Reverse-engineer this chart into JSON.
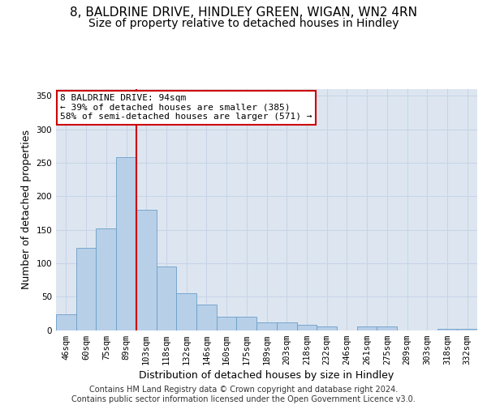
{
  "title_line1": "8, BALDRINE DRIVE, HINDLEY GREEN, WIGAN, WN2 4RN",
  "title_line2": "Size of property relative to detached houses in Hindley",
  "xlabel": "Distribution of detached houses by size in Hindley",
  "ylabel": "Number of detached properties",
  "categories": [
    "46sqm",
    "60sqm",
    "75sqm",
    "89sqm",
    "103sqm",
    "118sqm",
    "132sqm",
    "146sqm",
    "160sqm",
    "175sqm",
    "189sqm",
    "203sqm",
    "218sqm",
    "232sqm",
    "246sqm",
    "261sqm",
    "275sqm",
    "289sqm",
    "303sqm",
    "318sqm",
    "332sqm"
  ],
  "values": [
    24,
    123,
    152,
    258,
    180,
    95,
    55,
    38,
    20,
    20,
    11,
    11,
    8,
    6,
    0,
    6,
    5,
    0,
    0,
    2,
    2
  ],
  "bar_color": "#b8cfe8",
  "bar_edge_color": "#6a9fc8",
  "grid_color": "#c8d4e8",
  "background_color": "#dde6f0",
  "vline_index": 3.5,
  "vline_color": "#cc0000",
  "annotation_text": "8 BALDRINE DRIVE: 94sqm\n← 39% of detached houses are smaller (385)\n58% of semi-detached houses are larger (571) →",
  "annotation_box_color": "#ffffff",
  "annotation_edge_color": "#cc0000",
  "ylim": [
    0,
    360
  ],
  "yticks": [
    0,
    50,
    100,
    150,
    200,
    250,
    300,
    350
  ],
  "footer_text": "Contains HM Land Registry data © Crown copyright and database right 2024.\nContains public sector information licensed under the Open Government Licence v3.0.",
  "title_fontsize": 11,
  "subtitle_fontsize": 10,
  "axis_label_fontsize": 9,
  "tick_fontsize": 7.5,
  "footer_fontsize": 7.0,
  "annotation_fontsize": 8.0
}
